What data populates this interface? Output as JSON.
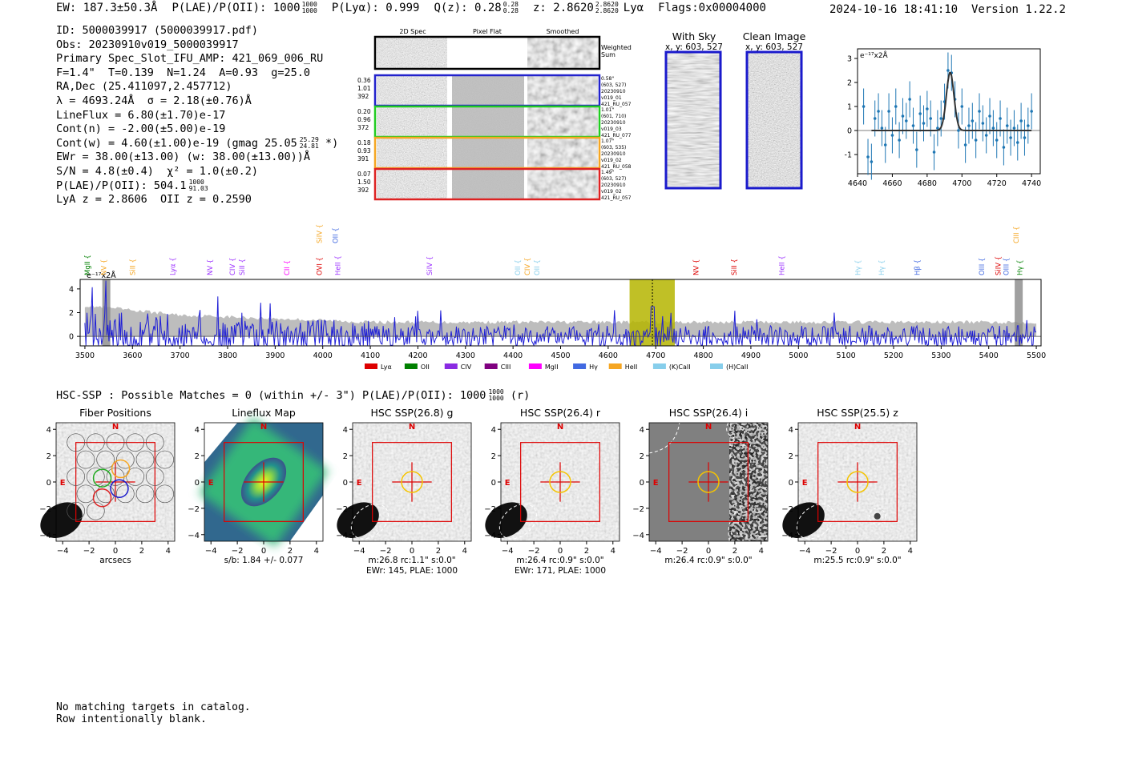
{
  "header": {
    "ew": "EW: 187.3±50.3Å",
    "plae": "P(LAE)/P(OII): 1000",
    "plae_sup": "1000",
    "plae_sub": "1000",
    "plya": "P(Lyα): 0.999",
    "qz": "Q(z): 0.28",
    "qz_sup": "0.28",
    "qz_sub": "0.28",
    "z": "z: 2.8620",
    "z_sup": "2.8620",
    "z_sub": "2.8620",
    "line": "Lyα",
    "flags": "Flags:0x00004000",
    "timestamp": "2024-10-16 18:41:10",
    "version": "Version 1.22.2"
  },
  "info": {
    "lines": [
      "ID: 5000039917 (5000039917.pdf)",
      "Obs: 20230910v019_5000039917",
      "Primary Spec_Slot_IFU_AMP: 421_069_006_RU",
      "F=1.4\"  T=0.139  N=1.24  A=0.93  g=25.0",
      "RA,Dec (25.411097,2.457712)",
      "λ = 4693.24Å  σ = 2.18(±0.76)Å",
      "LineFlux = 6.80(±1.70)e-17",
      "Cont(n) = -2.00(±5.00)e-19",
      "Cont(w) = 4.60(±1.00)e-19 (gmag 25.05",
      "EWr = 38.00(±13.00) (w: 38.00(±13.00))Å",
      "S/N = 4.8(±0.4)  χ² = 1.0(±0.2)",
      "P(LAE)/P(OII): 504.1",
      "LyA z = 2.8606  OII z = 0.2590"
    ],
    "gmag_sup": "25.29",
    "gmag_sub": "24.81",
    "gmag_tail": " *)",
    "plae_sup": "1000",
    "plae_sub": "91.03"
  },
  "cutouts": {
    "col_titles": [
      "2D Spec",
      "Pixel Flat",
      "Smoothed"
    ],
    "weighted_label": "Weighted\nSum",
    "rows": [
      {
        "color": "#2222cc",
        "left": [
          "0.36",
          "1.01",
          "392"
        ],
        "right": [
          "0.58\"",
          "(603, 527)",
          "20230910",
          "v019_01",
          "421_RU_057"
        ]
      },
      {
        "color": "#22cc22",
        "left": [
          "0.20",
          "0.96",
          "372"
        ],
        "right": [
          "1.01\"",
          "(601, 710)",
          "20230910",
          "v019_03",
          "421_RU_077"
        ]
      },
      {
        "color": "#f5a623",
        "left": [
          "0.18",
          "0.93",
          "391"
        ],
        "right": [
          "1.07\"",
          "(603, 535)",
          "20230910",
          "v019_02",
          "421_RU_058"
        ]
      },
      {
        "color": "#dd2222",
        "left": [
          "0.07",
          "1.50",
          "392"
        ],
        "right": [
          "1.49\"",
          "(603, 527)",
          "20230910",
          "v019_02",
          "421_RU_057"
        ]
      }
    ],
    "with_sky_title": "With Sky",
    "with_sky_sub": "x, y: 603, 527",
    "clean_title": "Clean Image",
    "clean_sub": "x, y: 603, 527"
  },
  "colors": {
    "blue": "#1f1fd6",
    "grey_fill": "#bdbdbd",
    "yellow_band": "#b5b500",
    "errbar": "#1f77b4",
    "red_box": "#dd0000"
  },
  "chart_data": [
    {
      "type": "scatter",
      "title": "",
      "ylabel": "e⁻¹⁷x2Å",
      "xlim": [
        4640,
        4745
      ],
      "ylim": [
        -1.8,
        3.4
      ],
      "xticks": [
        4640,
        4660,
        4680,
        4700,
        4720,
        4740
      ],
      "yticks": [
        -1,
        0,
        1,
        2,
        3
      ],
      "points_x": [
        4643.5,
        4646,
        4648,
        4650,
        4652,
        4654,
        4656,
        4658,
        4660,
        4662,
        4664,
        4666,
        4668,
        4670,
        4672,
        4674,
        4676,
        4678,
        4680,
        4682,
        4684,
        4686,
        4688,
        4690,
        4692,
        4694,
        4696,
        4698,
        4700,
        4702,
        4704,
        4706,
        4708,
        4710,
        4712,
        4714,
        4716,
        4718,
        4720,
        4722,
        4724,
        4726,
        4728,
        4730,
        4732,
        4734,
        4736,
        4738,
        4740
      ],
      "points_y": [
        1.0,
        -1.1,
        -1.3,
        0.5,
        0.8,
        0.1,
        -0.6,
        0.8,
        -0.2,
        1.0,
        -0.4,
        0.6,
        0.4,
        1.3,
        0.2,
        -0.8,
        0.7,
        0.3,
        0.9,
        0.5,
        -0.9,
        0.1,
        0.5,
        1.2,
        2.5,
        2.4,
        1.3,
        0.0,
        1.0,
        -0.6,
        0.2,
        0.4,
        -0.4,
        0.8,
        0.3,
        -0.2,
        0.6,
        0.1,
        -0.4,
        0.5,
        -0.7,
        0.2,
        -0.3,
        0.1,
        -0.5,
        0.4,
        -0.3,
        0.2,
        0.8
      ],
      "errors": 0.75,
      "fit": {
        "center": 4693.24,
        "sigma": 2.18,
        "amp": 2.42
      }
    },
    {
      "type": "line",
      "title": "",
      "ylabel": "e⁻¹⁷x2Å",
      "xlim": [
        3490,
        5510
      ],
      "ylim": [
        -0.8,
        4.8
      ],
      "xticks": [
        3500,
        3600,
        3700,
        3800,
        3900,
        4000,
        4100,
        4200,
        4300,
        4400,
        4500,
        4600,
        4700,
        4800,
        4900,
        5000,
        5100,
        5200,
        5300,
        5400,
        5500
      ],
      "yticks": [
        0,
        2,
        4
      ],
      "highlight_band": [
        4645,
        4740
      ],
      "marker_line": 4693,
      "grey_bars": [
        3545,
        5463
      ],
      "lines": [
        {
          "name": "MgII",
          "x": 3510,
          "color": "#008000",
          "row": 1
        },
        {
          "name": "NV",
          "x": 3545,
          "color": "#f5a623",
          "row": 1
        },
        {
          "name": "SiII",
          "x": 3605,
          "color": "#f5a623",
          "row": 1
        },
        {
          "name": "Lyα",
          "x": 3690,
          "color": "#9b30ff",
          "row": 1
        },
        {
          "name": "NV",
          "x": 3768,
          "color": "#9b30ff",
          "row": 1
        },
        {
          "name": "CIV",
          "x": 3815,
          "color": "#9b30ff",
          "row": 1
        },
        {
          "name": "SiII",
          "x": 3835,
          "color": "#9b30ff",
          "row": 1
        },
        {
          "name": "CII",
          "x": 3930,
          "color": "#ff00ff",
          "row": 1
        },
        {
          "name": "SiIV",
          "x": 3998,
          "color": "#f5a623",
          "row": 0
        },
        {
          "name": "OII",
          "x": 4032,
          "color": "#4169e1",
          "row": 0
        },
        {
          "name": "OVI",
          "x": 3998,
          "color": "#dd0000",
          "row": 1
        },
        {
          "name": "HeII",
          "x": 4037,
          "color": "#9b30ff",
          "row": 1
        },
        {
          "name": "SiIV",
          "x": 4230,
          "color": "#9b30ff",
          "row": 1
        },
        {
          "name": "OII",
          "x": 4415,
          "color": "#87ceeb",
          "row": 1
        },
        {
          "name": "CIV",
          "x": 4435,
          "color": "#f5a623",
          "row": 1
        },
        {
          "name": "OII",
          "x": 4455,
          "color": "#87ceeb",
          "row": 1
        },
        {
          "name": "NV",
          "x": 4790,
          "color": "#dd0000",
          "row": 1
        },
        {
          "name": "SiII",
          "x": 4870,
          "color": "#dd0000",
          "row": 1
        },
        {
          "name": "HeII",
          "x": 4970,
          "color": "#9b30ff",
          "row": 1
        },
        {
          "name": "Hγ",
          "x": 5130,
          "color": "#87ceeb",
          "row": 1
        },
        {
          "name": "Hγ",
          "x": 5180,
          "color": "#87ceeb",
          "row": 1
        },
        {
          "name": "Hβ",
          "x": 5255,
          "color": "#4169e1",
          "row": 1
        },
        {
          "name": "OIII",
          "x": 5390,
          "color": "#4169e1",
          "row": 1
        },
        {
          "name": "SiIV",
          "x": 5425,
          "color": "#dd0000",
          "row": 1
        },
        {
          "name": "OIII",
          "x": 5442,
          "color": "#4169e1",
          "row": 1
        },
        {
          "name": "CIII",
          "x": 5463,
          "color": "#f5a623",
          "row": 0
        },
        {
          "name": "Hγ",
          "x": 5470,
          "color": "#008000",
          "row": 1
        }
      ],
      "legend": [
        {
          "name": "Lyα",
          "color": "#dd0000"
        },
        {
          "name": "OII",
          "color": "#008000"
        },
        {
          "name": "CIV",
          "color": "#8a2be2"
        },
        {
          "name": "CIII",
          "color": "#800080"
        },
        {
          "name": "MgII",
          "color": "#ff00ff"
        },
        {
          "name": "Hγ",
          "color": "#4169e1"
        },
        {
          "name": "HeII",
          "color": "#f5a623"
        },
        {
          "name": "(K)CaII",
          "color": "#87ceeb"
        },
        {
          "name": "(H)CaII",
          "color": "#87ceeb"
        }
      ]
    }
  ],
  "hsc": {
    "summary": "HSC-SSP : Possible Matches = 0 (within +/- 3\")  P(LAE)/P(OII): 1000",
    "summary_sup": "1000",
    "summary_sub": "1000",
    "summary_tail": " (r)",
    "panels": [
      {
        "title": "Fiber Positions",
        "caption1": "arcsecs",
        "caption2": ""
      },
      {
        "title": "Lineflux Map",
        "caption1": "s/b: 1.84 +/- 0.077",
        "caption2": ""
      },
      {
        "title": "HSC SSP(26.8) g",
        "caption1": "m:26.8 rc:1.1\"  s:0.0\"",
        "caption2": "EWr: 145, PLAE: 1000"
      },
      {
        "title": "HSC SSP(26.4) r",
        "caption1": "m:26.4 rc:0.9\"  s:0.0\"",
        "caption2": "EWr: 171, PLAE: 1000"
      },
      {
        "title": "HSC SSP(26.4) i",
        "caption1": "m:26.4 rc:0.9\"  s:0.0\"",
        "caption2": ""
      },
      {
        "title": "HSC SSP(25.5) z",
        "caption1": "m:25.5 rc:0.9\"  s:0.0\"",
        "caption2": ""
      }
    ],
    "compass_n": "N",
    "compass_e": "E",
    "axis_ticks": [
      "−4",
      "−2",
      "0",
      "2",
      "4"
    ]
  },
  "footer": {
    "line1": "No matching targets in catalog.",
    "line2": "Row intentionally blank."
  }
}
